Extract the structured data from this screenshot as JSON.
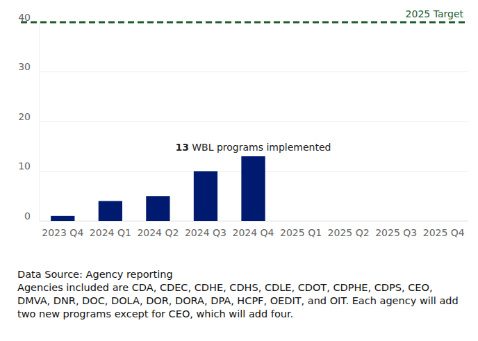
{
  "chart_data": {
    "type": "bar",
    "categories": [
      "2023 Q4",
      "2024 Q1",
      "2024 Q2",
      "2024 Q3",
      "2024 Q4",
      "2025 Q1",
      "2025 Q2",
      "2025 Q3",
      "2025 Q4"
    ],
    "values": [
      1,
      4,
      5,
      10,
      13,
      null,
      null,
      null,
      null
    ],
    "color": "#001a70",
    "ylim": [
      0,
      40
    ],
    "yticks": [
      0,
      10,
      20,
      30,
      40
    ],
    "grid": true,
    "target": {
      "value": 40,
      "label": "2025 Target",
      "color": "#1e5c2e"
    },
    "annotation": {
      "value": 13,
      "text": "WBL programs implemented"
    },
    "notes": [
      "Data Source: Agency reporting",
      "Agencies included are CDA, CDEC, CDHE, CDHS, CDLE, CDOT, CDPHE, CDPS, CEO,",
      "DMVA, DNR, DOC, DOLA, DOR, DORA, DPA, HCPF, OEDIT, and OIT. Each agency will add",
      "two new programs except for CEO, which will add four."
    ]
  }
}
